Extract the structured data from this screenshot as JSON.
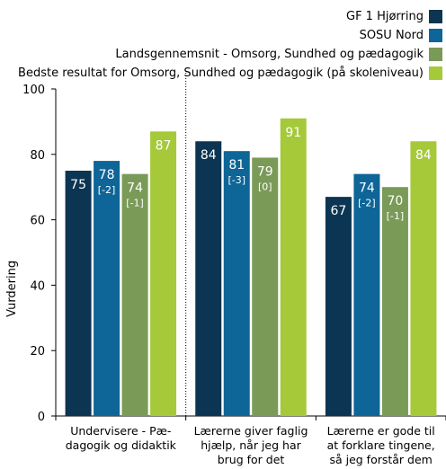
{
  "chart_data": {
    "type": "bar",
    "ylabel": "Vurdering",
    "ylim": [
      0,
      100
    ],
    "yticks": [
      0,
      20,
      40,
      60,
      80,
      100
    ],
    "grid": false,
    "legend_position": "top-right",
    "categories": [
      [
        "Undervisere - Pæ-",
        "dagogik og didaktik"
      ],
      [
        "Lærerne giver faglig",
        "hjælp, når jeg har",
        "brug for det"
      ],
      [
        "Lærerne er gode til",
        "at forklare tingene,",
        "så jeg forstår dem"
      ]
    ],
    "series": [
      {
        "name": "GF 1 Hjørring",
        "color": "#0b3552",
        "values": [
          75,
          84,
          67
        ],
        "labels": [
          "75",
          "84",
          "67"
        ],
        "sublabels": [
          "",
          "",
          ""
        ]
      },
      {
        "name": "SOSU Nord",
        "color": "#0e6597",
        "values": [
          78,
          81,
          74
        ],
        "labels": [
          "78",
          "81",
          "74"
        ],
        "sublabels": [
          "[-2]",
          "[-3]",
          "[-2]"
        ]
      },
      {
        "name": "Landsgennemsnit - Omsorg, Sundhed og pædagogik",
        "color": "#7a9a57",
        "values": [
          74,
          79,
          70
        ],
        "labels": [
          "74",
          "79",
          "70"
        ],
        "sublabels": [
          "[-1]",
          "[0]",
          "[-1]"
        ]
      },
      {
        "name": "Bedste resultat for Omsorg, Sundhed og pædagogik (på skoleniveau)",
        "color": "#a6c93a",
        "values": [
          87,
          91,
          84
        ],
        "labels": [
          "87",
          "91",
          "84"
        ],
        "sublabels": [
          "",
          "",
          ""
        ]
      }
    ]
  }
}
